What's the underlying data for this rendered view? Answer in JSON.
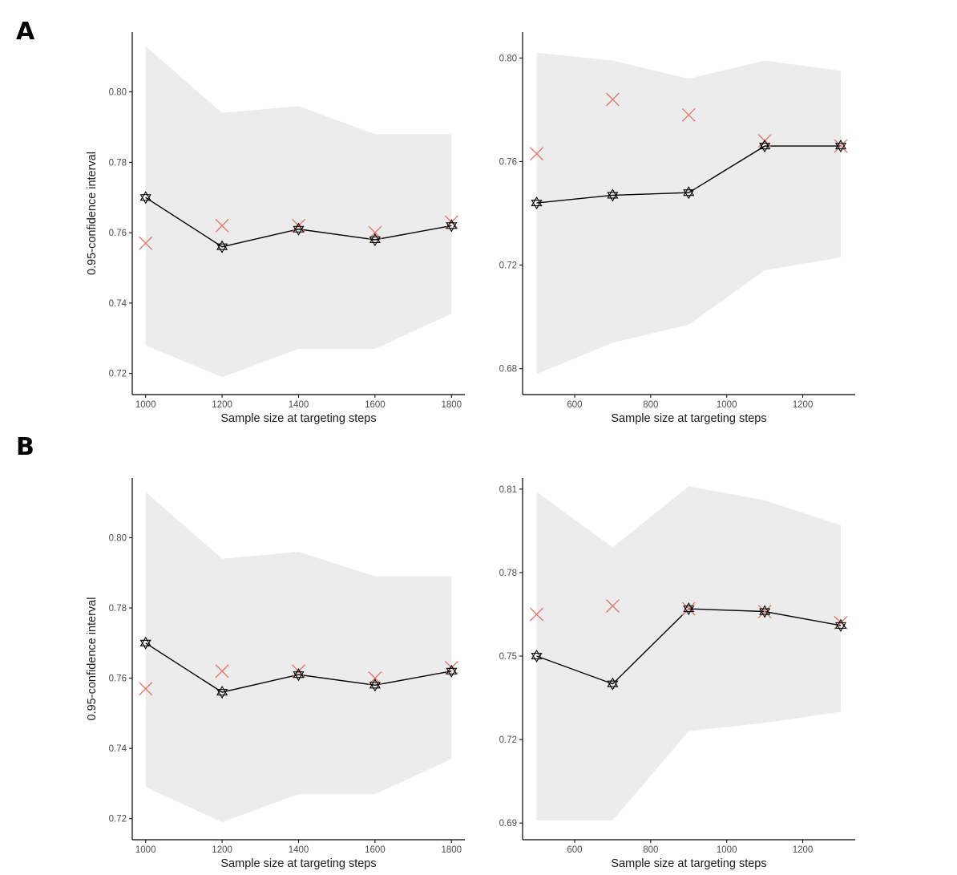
{
  "panel_labels": [
    "A",
    "B"
  ],
  "colors": {
    "band": "#ececec",
    "line": "#000000",
    "marker_outline": "#000000",
    "cross": "#e07b6e",
    "axis": "#000000",
    "tick_text": "#4d4d4d"
  },
  "chart_data": [
    {
      "panel": "A",
      "position": "left",
      "type": "line",
      "xlabel": "Sample size at targeting steps",
      "ylabel": "0.95-confidence interval",
      "x_ticks": [
        1000,
        1200,
        1400,
        1600,
        1800
      ],
      "y_ticks": [
        0.72,
        0.74,
        0.76,
        0.78,
        0.8
      ],
      "xlim": [
        965,
        1835
      ],
      "ylim": [
        0.714,
        0.817
      ],
      "x": [
        1000,
        1200,
        1400,
        1600,
        1800
      ],
      "line_values": [
        0.77,
        0.756,
        0.761,
        0.758,
        0.762
      ],
      "cross_values": [
        0.757,
        0.762,
        0.762,
        0.76,
        0.763
      ],
      "band_upper": [
        0.813,
        0.794,
        0.796,
        0.788,
        0.788
      ],
      "band_lower": [
        0.728,
        0.719,
        0.727,
        0.727,
        0.737
      ]
    },
    {
      "panel": "A",
      "position": "right",
      "type": "line",
      "xlabel": "Sample size at targeting steps",
      "ylabel": "",
      "x_ticks": [
        600,
        800,
        1000,
        1200
      ],
      "x_tick_labels": [
        "600",
        "800",
        "1000",
        "1200"
      ],
      "y_ticks": [
        0.68,
        0.72,
        0.76,
        0.8
      ],
      "xlim": [
        463,
        1338
      ],
      "ylim": [
        0.67,
        0.81
      ],
      "x": [
        500,
        700,
        900,
        1100,
        1300
      ],
      "line_values": [
        0.744,
        0.747,
        0.748,
        0.766,
        0.766
      ],
      "cross_values": [
        0.763,
        0.784,
        0.778,
        0.768,
        0.766
      ],
      "band_upper": [
        0.802,
        0.799,
        0.792,
        0.799,
        0.795
      ],
      "band_lower": [
        0.678,
        0.69,
        0.697,
        0.718,
        0.723
      ]
    },
    {
      "panel": "B",
      "position": "left",
      "type": "line",
      "xlabel": "Sample size at targeting steps",
      "ylabel": "0.95-confidence interval",
      "x_ticks": [
        1000,
        1200,
        1400,
        1600,
        1800
      ],
      "y_ticks": [
        0.72,
        0.74,
        0.76,
        0.78,
        0.8
      ],
      "xlim": [
        965,
        1835
      ],
      "ylim": [
        0.714,
        0.817
      ],
      "x": [
        1000,
        1200,
        1400,
        1600,
        1800
      ],
      "line_values": [
        0.77,
        0.756,
        0.761,
        0.758,
        0.762
      ],
      "cross_values": [
        0.757,
        0.762,
        0.762,
        0.76,
        0.763
      ],
      "band_upper": [
        0.813,
        0.794,
        0.796,
        0.789,
        0.789
      ],
      "band_lower": [
        0.729,
        0.719,
        0.727,
        0.727,
        0.737
      ]
    },
    {
      "panel": "B",
      "position": "right",
      "type": "line",
      "xlabel": "Sample size at targeting steps",
      "ylabel": "",
      "x_ticks": [
        600,
        800,
        1000,
        1200
      ],
      "x_tick_labels": [
        "600",
        "800",
        "1000",
        "1200"
      ],
      "y_ticks": [
        0.69,
        0.72,
        0.75,
        0.78,
        0.81
      ],
      "y_tick_labels": [
        "0.69",
        "0.72",
        "0.75",
        "0.78",
        "0.81"
      ],
      "xlim": [
        463,
        1338
      ],
      "ylim": [
        0.684,
        0.814
      ],
      "x": [
        500,
        700,
        900,
        1100,
        1300
      ],
      "line_values": [
        0.75,
        0.74,
        0.767,
        0.766,
        0.761
      ],
      "cross_values": [
        0.765,
        0.768,
        0.767,
        0.766,
        0.762
      ],
      "band_upper": [
        0.809,
        0.789,
        0.811,
        0.806,
        0.797
      ],
      "band_lower": [
        0.691,
        0.691,
        0.723,
        0.726,
        0.73
      ]
    }
  ]
}
